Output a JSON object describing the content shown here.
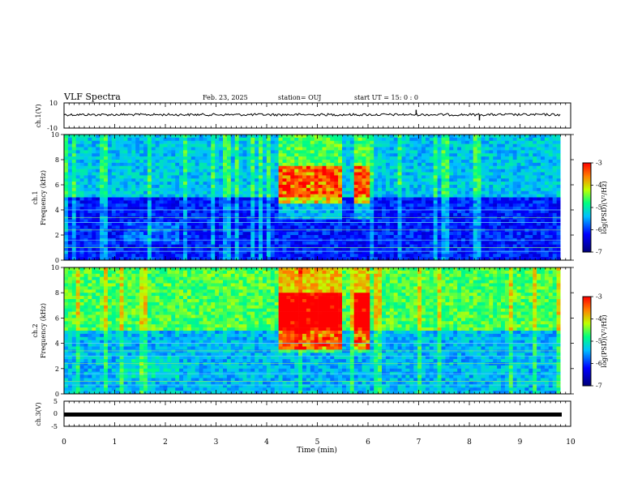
{
  "header": {
    "title": "VLF Spectra",
    "date": "Feb. 23, 2025",
    "station": "station= OUJ",
    "start": "start  UT =  15: 0  : 0"
  },
  "chart_data": [
    {
      "type": "line",
      "panel": "ch1-waveform",
      "ylabel": "ch.1(V)",
      "ylim": [
        -10,
        10
      ],
      "yticks": [
        "10",
        "-10"
      ],
      "x": [
        0,
        9.8
      ],
      "values": [
        0,
        0
      ],
      "notes": "noisy trace near 0 V with short spikes at ~6.9 and ~8.2 min"
    },
    {
      "type": "heatmap",
      "panel": "ch1-spectrogram",
      "ylabel": "ch.1\nFrequency (kHz)",
      "xlim": [
        0,
        10
      ],
      "ylim": [
        0,
        10
      ],
      "yticks": [
        "0",
        "2",
        "4",
        "6",
        "8",
        "10"
      ],
      "colorbar": {
        "label": "log(PSD)(V²/Hz)",
        "range": [
          -7,
          -3
        ],
        "ticks": [
          "-3",
          "-4",
          "-5",
          "-6",
          "-7"
        ]
      },
      "bursts_min": [
        [
          4.25,
          5.5
        ],
        [
          5.7,
          6.0
        ]
      ],
      "burst_band_khz": [
        4.5,
        7.5
      ]
    },
    {
      "type": "heatmap",
      "panel": "ch2-spectrogram",
      "ylabel": "ch.2\nFrequency (kHz)",
      "xlim": [
        0,
        10
      ],
      "ylim": [
        0,
        10
      ],
      "yticks": [
        "0",
        "2",
        "4",
        "6",
        "8",
        "10"
      ],
      "colorbar": {
        "label": "log(PSD)(V²/Hz)",
        "range": [
          -7,
          -3
        ],
        "ticks": [
          "-3",
          "-4",
          "-5",
          "-6",
          "-7"
        ]
      },
      "bursts_min": [
        [
          4.25,
          5.5
        ],
        [
          5.7,
          6.0
        ]
      ],
      "burst_band_khz": [
        3.5,
        8.0
      ]
    },
    {
      "type": "line",
      "panel": "ch3-waveform",
      "ylabel": "ch.3(V)",
      "ylim": [
        -5,
        5
      ],
      "yticks": [
        "5",
        "0",
        "-5"
      ],
      "x": [
        0,
        9.8
      ],
      "values": [
        -0.6,
        -0.6
      ]
    }
  ],
  "xaxis": {
    "label": "Time  (min)",
    "ticks": [
      "0",
      "1",
      "2",
      "3",
      "4",
      "5",
      "6",
      "7",
      "8",
      "9",
      "10"
    ]
  },
  "colors": {
    "background": "#000088",
    "axis": "#000000"
  }
}
